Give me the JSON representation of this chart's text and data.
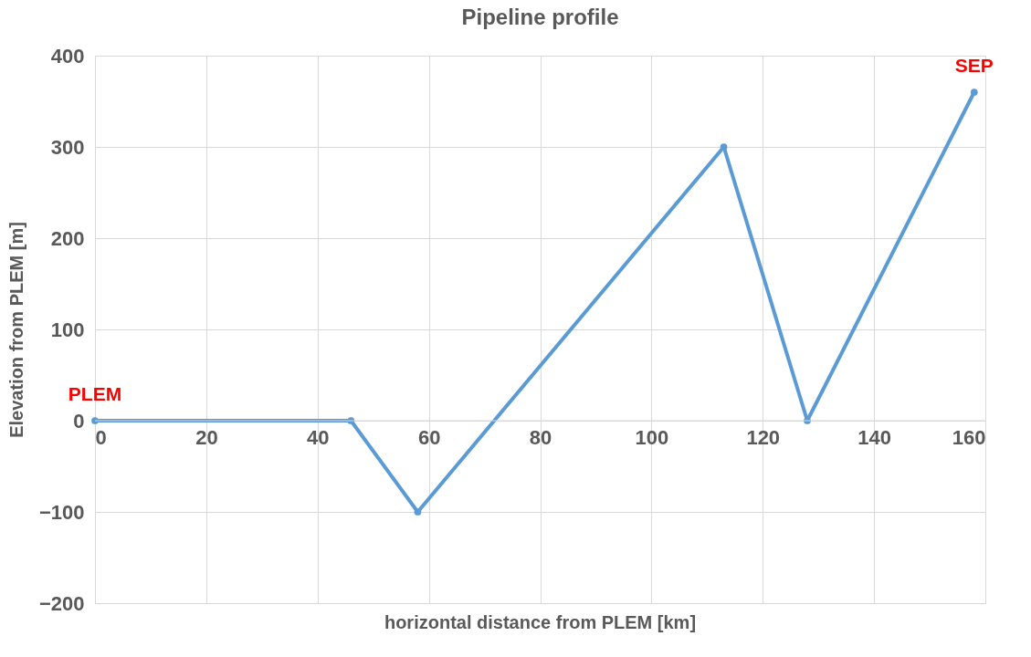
{
  "chart_data": {
    "type": "line",
    "title": "Pipeline profile",
    "xlabel": "horizontal distance from PLEM [km]",
    "ylabel": "Elevation from PLEM [m]",
    "x": [
      0,
      46,
      58,
      113,
      128,
      158
    ],
    "series": [
      {
        "color": "#5b9bd5",
        "values": [
          0,
          0,
          -100,
          300,
          0,
          360
        ]
      }
    ],
    "xlim": [
      0,
      160
    ],
    "xticks": [
      0,
      20,
      40,
      60,
      80,
      100,
      120,
      140,
      160
    ],
    "ylim": [
      -200,
      400
    ],
    "yticks": [
      -200,
      -100,
      0,
      100,
      200,
      300,
      400
    ],
    "grid": true,
    "marker": "circle",
    "line_style": "solid",
    "annotations": [
      {
        "text": "PLEM",
        "x": 0,
        "y": 0
      },
      {
        "text": "SEP",
        "x": 158,
        "y": 360
      }
    ]
  }
}
